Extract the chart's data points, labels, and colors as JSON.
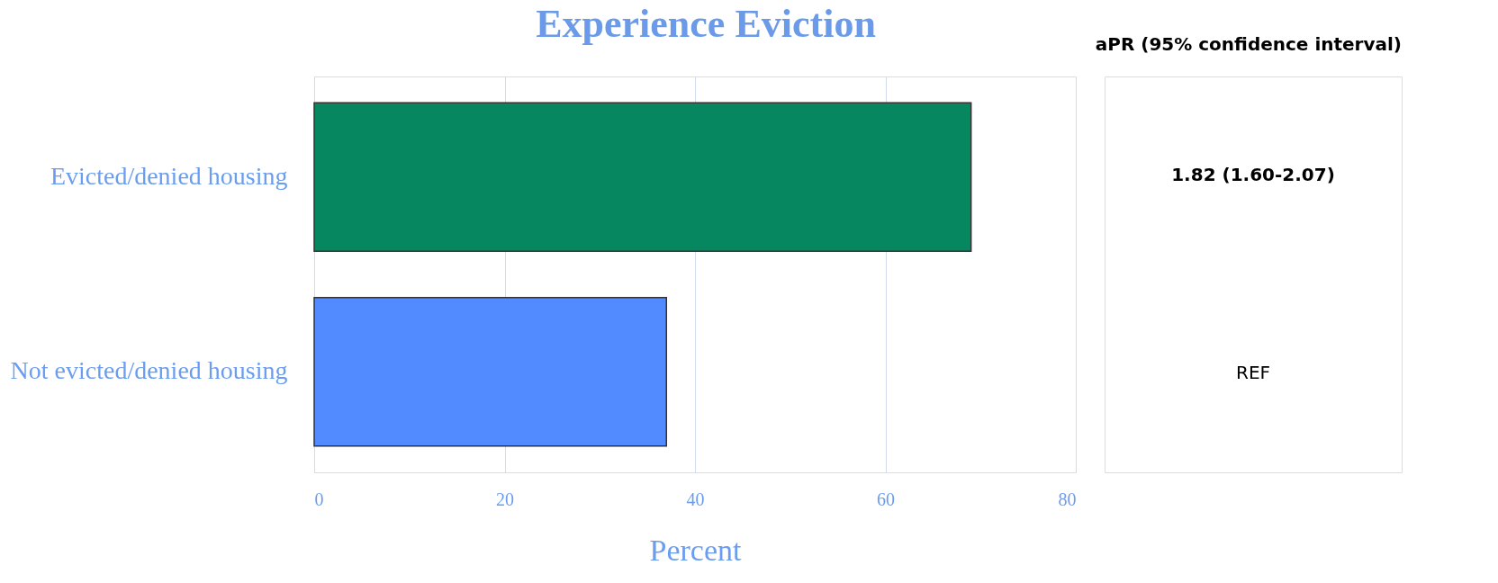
{
  "chart_data": {
    "type": "bar",
    "orientation": "horizontal",
    "title": "Experience Eviction",
    "xlabel": "Percent",
    "categories": [
      "Evicted/denied housing",
      "Not evicted/denied housing"
    ],
    "values": [
      69,
      37
    ],
    "colors": [
      "#07875f",
      "#518bff"
    ],
    "xlim": [
      0,
      80
    ],
    "xticks": [
      0,
      20,
      40,
      60,
      80
    ],
    "grid": "x",
    "annotations": [
      "aPR (95% confidence interval)",
      "1.82 (1.60-2.07)",
      "REF"
    ]
  }
}
